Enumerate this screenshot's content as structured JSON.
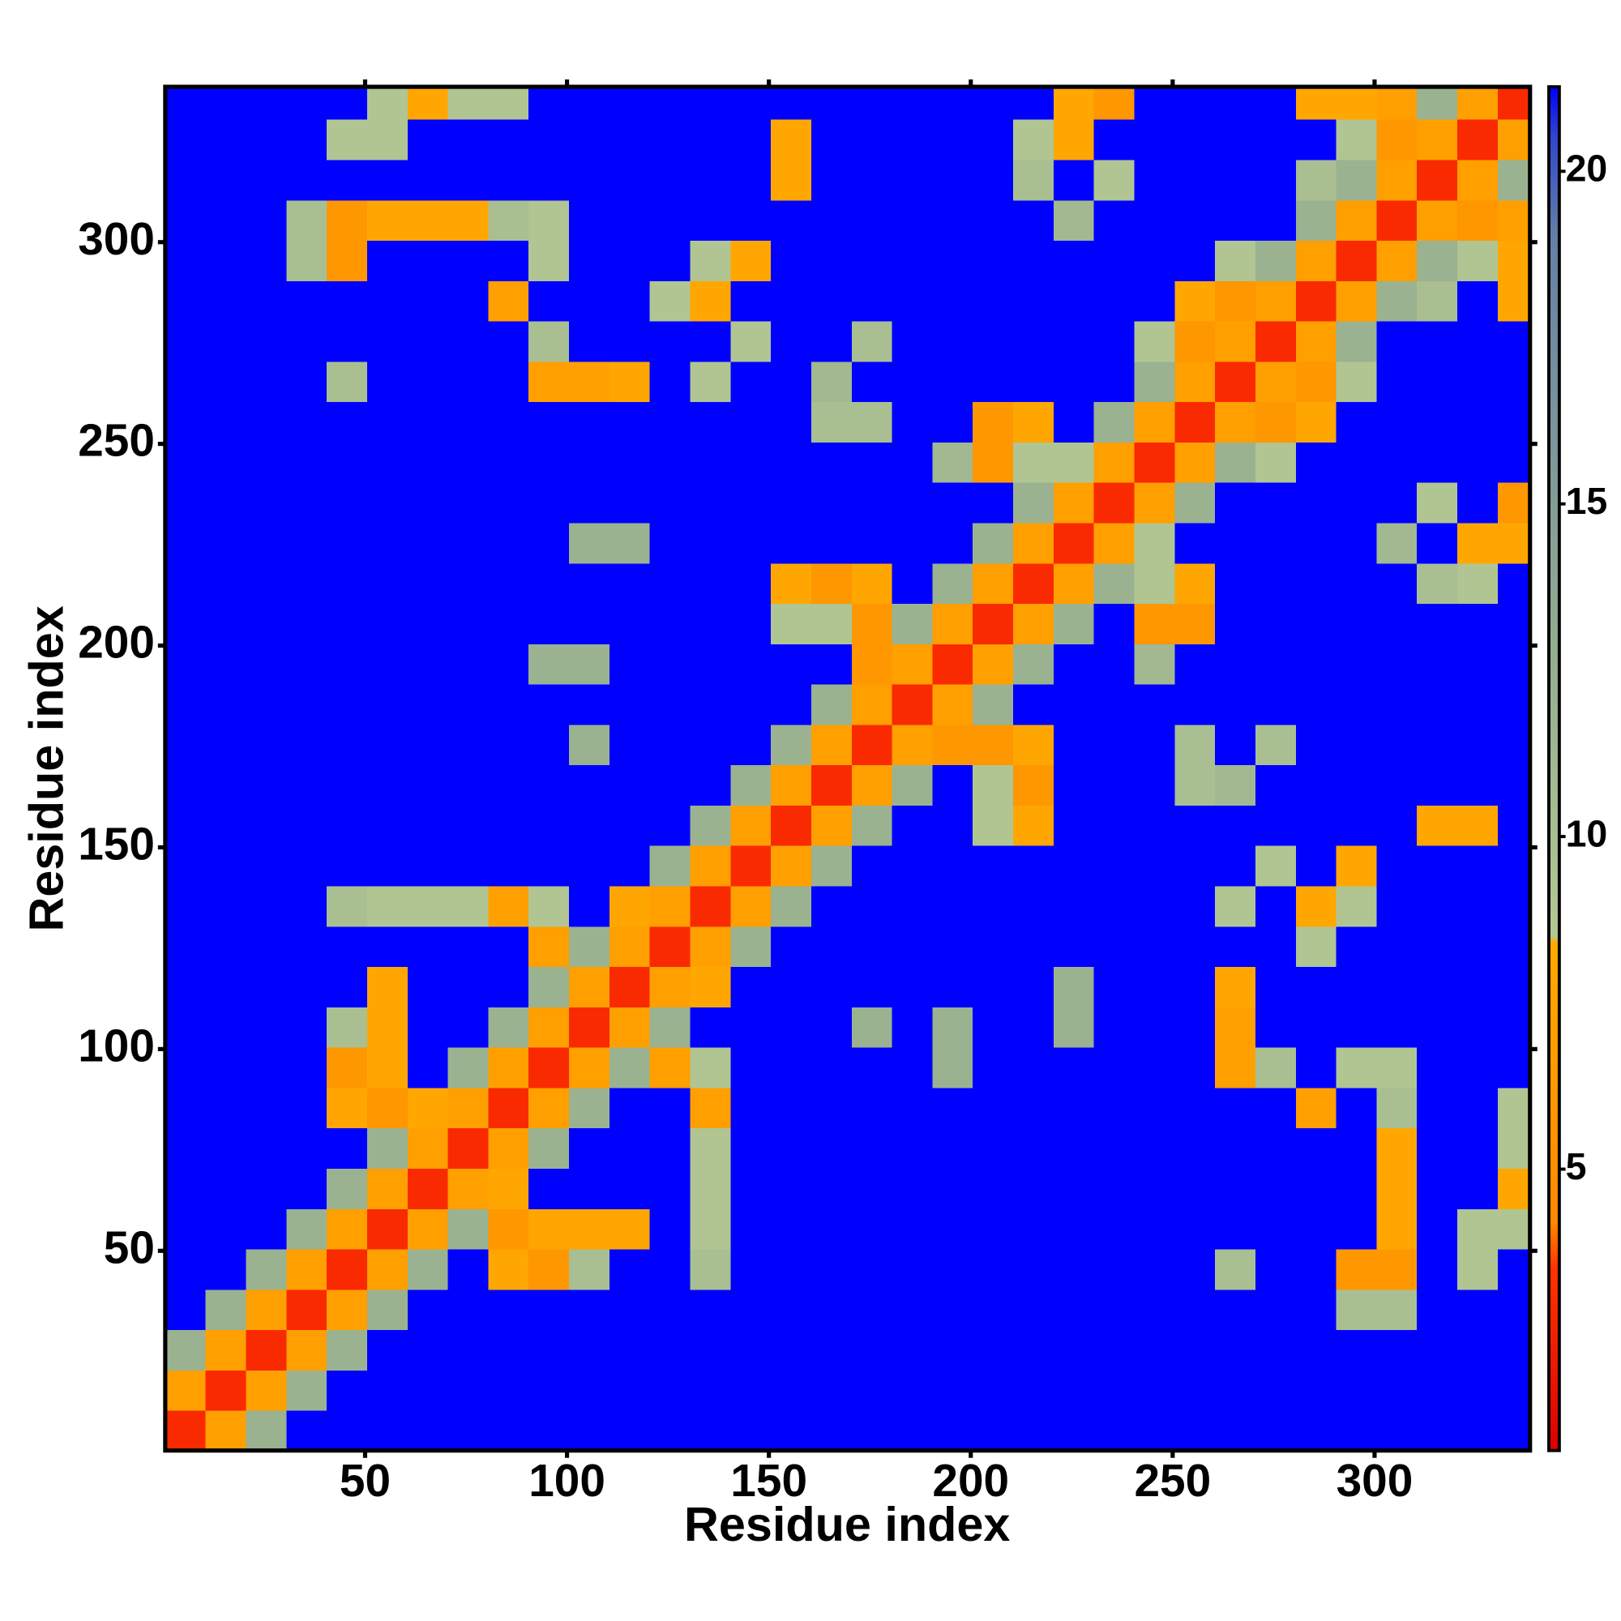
{
  "chart_data": {
    "type": "heatmap",
    "xlabel": "Residue index",
    "ylabel": "Residue index",
    "xbins": [
      0.5,
      10.5,
      20.5,
      30.5,
      40.5,
      50.5,
      60.5,
      70.5,
      80.5,
      90.5,
      100.5,
      110.5,
      120.5,
      130.5,
      140.5,
      150.5,
      160.5,
      170.5,
      180.5,
      190.5,
      200.5,
      210.5,
      220.5,
      230.5,
      240.5,
      250.5,
      260.5,
      270.5,
      280.5,
      290.5,
      300.5,
      310.5,
      320.5,
      330.5,
      338.5
    ],
    "ybins": [
      0.5,
      10.5,
      20.5,
      30.5,
      40.5,
      50.5,
      60.5,
      70.5,
      80.5,
      90.5,
      100.5,
      110.5,
      120.5,
      130.5,
      140.5,
      150.5,
      160.5,
      170.5,
      180.5,
      190.5,
      200.5,
      210.5,
      220.5,
      230.5,
      240.5,
      250.5,
      260.5,
      270.5,
      280.5,
      290.5,
      300.5,
      310.5,
      320.5,
      330.5,
      338.5
    ],
    "z": [
      [
        3,
        7,
        12,
        25,
        25,
        25,
        25,
        25,
        25,
        25,
        25,
        25,
        25,
        25,
        25,
        25,
        25,
        25,
        25,
        25,
        25,
        25,
        25,
        25,
        25,
        25,
        25,
        25,
        25,
        25,
        25,
        25,
        25,
        25
      ],
      [
        7,
        3,
        7,
        12,
        25,
        25,
        25,
        25,
        25,
        25,
        25,
        25,
        25,
        25,
        25,
        25,
        25,
        25,
        25,
        25,
        25,
        25,
        25,
        25,
        25,
        25,
        25,
        25,
        25,
        25,
        25,
        25,
        25,
        25
      ],
      [
        12,
        7,
        3,
        7,
        12,
        25,
        25,
        25,
        25,
        25,
        25,
        25,
        25,
        25,
        25,
        25,
        25,
        25,
        25,
        25,
        25,
        25,
        25,
        25,
        25,
        25,
        25,
        25,
        25,
        25,
        25,
        25,
        25,
        25
      ],
      [
        25,
        12,
        7,
        3,
        7,
        12,
        25,
        25,
        25,
        25,
        25,
        25,
        25,
        25,
        25,
        25,
        25,
        25,
        25,
        25,
        25,
        25,
        25,
        25,
        25,
        25,
        25,
        25,
        25,
        10,
        10,
        25,
        25,
        25
      ],
      [
        25,
        25,
        12,
        7,
        3,
        7,
        12,
        25,
        8,
        6,
        10,
        25,
        25,
        10,
        25,
        25,
        25,
        25,
        25,
        25,
        25,
        25,
        25,
        25,
        25,
        25,
        10,
        25,
        25,
        6,
        6,
        25,
        9,
        25
      ],
      [
        25,
        25,
        25,
        12,
        7,
        3,
        7,
        12,
        6,
        8,
        8,
        8,
        25,
        9,
        25,
        25,
        25,
        25,
        25,
        25,
        25,
        25,
        25,
        25,
        25,
        25,
        25,
        25,
        25,
        25,
        8,
        25,
        9,
        9
      ],
      [
        25,
        25,
        25,
        25,
        12,
        7,
        3,
        7,
        8,
        25,
        25,
        25,
        25,
        9,
        25,
        25,
        25,
        25,
        25,
        25,
        25,
        25,
        25,
        25,
        25,
        25,
        25,
        25,
        25,
        25,
        8,
        25,
        25,
        8
      ],
      [
        25,
        25,
        25,
        25,
        25,
        12,
        7,
        3,
        7,
        12,
        25,
        25,
        25,
        9,
        25,
        25,
        25,
        25,
        25,
        25,
        25,
        25,
        25,
        25,
        25,
        25,
        25,
        25,
        25,
        25,
        8,
        25,
        25,
        9
      ],
      [
        25,
        25,
        25,
        25,
        8,
        6,
        8,
        7,
        3,
        7,
        12,
        25,
        25,
        7,
        25,
        25,
        25,
        25,
        25,
        25,
        25,
        25,
        25,
        25,
        25,
        25,
        25,
        25,
        7,
        25,
        10,
        25,
        25,
        9
      ],
      [
        25,
        25,
        25,
        25,
        6,
        8,
        25,
        12,
        7,
        3,
        7,
        12,
        7,
        9,
        25,
        25,
        25,
        25,
        25,
        12,
        25,
        25,
        25,
        25,
        25,
        25,
        7,
        10,
        25,
        9,
        9,
        25,
        25,
        25
      ],
      [
        25,
        25,
        25,
        25,
        10,
        8,
        25,
        25,
        12,
        7,
        3,
        7,
        12,
        25,
        25,
        25,
        25,
        12,
        25,
        12,
        25,
        25,
        12,
        25,
        25,
        25,
        7,
        25,
        25,
        25,
        25,
        25,
        25,
        25
      ],
      [
        25,
        25,
        25,
        25,
        25,
        8,
        25,
        25,
        25,
        12,
        7,
        3,
        7,
        8,
        25,
        25,
        25,
        25,
        25,
        25,
        25,
        25,
        12,
        25,
        25,
        25,
        8,
        25,
        25,
        25,
        25,
        25,
        25,
        25
      ],
      [
        25,
        25,
        25,
        25,
        25,
        25,
        25,
        25,
        25,
        7,
        12,
        7,
        3,
        7,
        12,
        25,
        25,
        25,
        25,
        25,
        25,
        25,
        25,
        25,
        25,
        25,
        25,
        25,
        9,
        25,
        25,
        25,
        25,
        25
      ],
      [
        25,
        25,
        25,
        25,
        10,
        9,
        9,
        9,
        7,
        9,
        25,
        8,
        7,
        3,
        7,
        12,
        25,
        25,
        25,
        25,
        25,
        25,
        25,
        25,
        25,
        25,
        9,
        25,
        8,
        9,
        25,
        25,
        25,
        25
      ],
      [
        25,
        25,
        25,
        25,
        25,
        25,
        25,
        25,
        25,
        25,
        25,
        25,
        12,
        7,
        3,
        7,
        12,
        25,
        25,
        25,
        25,
        25,
        25,
        25,
        25,
        25,
        25,
        9,
        25,
        8,
        25,
        25,
        25,
        25
      ],
      [
        25,
        25,
        25,
        25,
        25,
        25,
        25,
        25,
        25,
        25,
        25,
        25,
        25,
        12,
        7,
        3,
        7,
        12,
        25,
        25,
        9,
        8,
        25,
        25,
        25,
        25,
        25,
        25,
        25,
        25,
        25,
        8,
        8,
        25
      ],
      [
        25,
        25,
        25,
        25,
        25,
        25,
        25,
        25,
        25,
        25,
        25,
        25,
        25,
        25,
        12,
        7,
        3,
        7,
        12,
        25,
        9,
        6,
        25,
        25,
        25,
        10,
        11,
        25,
        25,
        25,
        25,
        25,
        25,
        25
      ],
      [
        25,
        25,
        25,
        25,
        25,
        25,
        25,
        25,
        25,
        25,
        12,
        25,
        25,
        25,
        25,
        12,
        7,
        3,
        7,
        6,
        6,
        8,
        25,
        25,
        25,
        10,
        25,
        10,
        25,
        25,
        25,
        25,
        25,
        25
      ],
      [
        25,
        25,
        25,
        25,
        25,
        25,
        25,
        25,
        25,
        25,
        25,
        25,
        25,
        25,
        25,
        25,
        12,
        7,
        3,
        7,
        12,
        25,
        25,
        25,
        25,
        25,
        25,
        25,
        25,
        25,
        25,
        25,
        25,
        25
      ],
      [
        25,
        25,
        25,
        25,
        25,
        25,
        25,
        25,
        25,
        12,
        12,
        25,
        25,
        25,
        25,
        25,
        25,
        6,
        7,
        3,
        7,
        12,
        25,
        25,
        11,
        25,
        25,
        25,
        25,
        25,
        25,
        25,
        25,
        25
      ],
      [
        25,
        25,
        25,
        25,
        25,
        25,
        25,
        25,
        25,
        25,
        25,
        25,
        25,
        25,
        25,
        9,
        9,
        6,
        12,
        7,
        3,
        7,
        12,
        25,
        6,
        6,
        25,
        25,
        25,
        25,
        25,
        25,
        25,
        25
      ],
      [
        25,
        25,
        25,
        25,
        25,
        25,
        25,
        25,
        25,
        25,
        25,
        25,
        25,
        25,
        25,
        8,
        6,
        8,
        25,
        12,
        7,
        3,
        7,
        12,
        9,
        8,
        25,
        25,
        25,
        25,
        25,
        10,
        9,
        25
      ],
      [
        25,
        25,
        25,
        25,
        25,
        25,
        25,
        25,
        25,
        25,
        12,
        12,
        25,
        25,
        25,
        25,
        25,
        25,
        25,
        25,
        12,
        7,
        3,
        7,
        9,
        25,
        25,
        25,
        25,
        25,
        11,
        25,
        8,
        8
      ],
      [
        25,
        25,
        25,
        25,
        25,
        25,
        25,
        25,
        25,
        25,
        25,
        25,
        25,
        25,
        25,
        25,
        25,
        25,
        25,
        25,
        25,
        12,
        7,
        3,
        7,
        12,
        25,
        25,
        25,
        25,
        25,
        9,
        25,
        6
      ],
      [
        25,
        25,
        25,
        25,
        25,
        25,
        25,
        25,
        25,
        25,
        25,
        25,
        25,
        25,
        25,
        25,
        25,
        25,
        25,
        11,
        6,
        9,
        9,
        7,
        3,
        7,
        12,
        9,
        25,
        25,
        25,
        25,
        25,
        25
      ],
      [
        25,
        25,
        25,
        25,
        25,
        25,
        25,
        25,
        25,
        25,
        25,
        25,
        25,
        25,
        25,
        25,
        10,
        10,
        25,
        25,
        6,
        8,
        25,
        12,
        7,
        3,
        7,
        6,
        8,
        25,
        25,
        25,
        25,
        25
      ],
      [
        25,
        25,
        25,
        25,
        10,
        25,
        25,
        25,
        25,
        7,
        7,
        8,
        25,
        9,
        25,
        25,
        11,
        25,
        25,
        25,
        25,
        25,
        25,
        25,
        12,
        7,
        3,
        7,
        6,
        9,
        25,
        25,
        25,
        25
      ],
      [
        25,
        25,
        25,
        25,
        25,
        25,
        25,
        25,
        25,
        10,
        25,
        25,
        25,
        25,
        9,
        25,
        25,
        10,
        25,
        25,
        25,
        25,
        25,
        25,
        9,
        6,
        7,
        3,
        7,
        12,
        25,
        25,
        25,
        25
      ],
      [
        25,
        25,
        25,
        25,
        25,
        25,
        25,
        25,
        7,
        25,
        25,
        25,
        9,
        8,
        25,
        25,
        25,
        25,
        25,
        25,
        25,
        25,
        25,
        25,
        25,
        8,
        6,
        7,
        3,
        7,
        12,
        10,
        25,
        8
      ],
      [
        25,
        25,
        25,
        10,
        6,
        25,
        25,
        25,
        25,
        9,
        25,
        25,
        25,
        9,
        8,
        25,
        25,
        25,
        25,
        25,
        25,
        25,
        25,
        25,
        25,
        25,
        9,
        12,
        7,
        3,
        7,
        12,
        9,
        8
      ],
      [
        25,
        25,
        25,
        10,
        6,
        8,
        8,
        8,
        10,
        9,
        25,
        25,
        25,
        25,
        25,
        25,
        25,
        25,
        25,
        25,
        25,
        25,
        11,
        25,
        25,
        25,
        25,
        25,
        12,
        7,
        3,
        7,
        6,
        7
      ],
      [
        25,
        25,
        25,
        25,
        25,
        25,
        25,
        25,
        25,
        25,
        25,
        25,
        25,
        25,
        25,
        8,
        25,
        25,
        25,
        25,
        25,
        10,
        25,
        9,
        25,
        25,
        25,
        25,
        10,
        12,
        7,
        3,
        7,
        12
      ],
      [
        25,
        25,
        25,
        25,
        9,
        9,
        25,
        25,
        25,
        25,
        25,
        25,
        25,
        25,
        25,
        8,
        25,
        25,
        25,
        25,
        25,
        9,
        8,
        25,
        25,
        25,
        25,
        25,
        25,
        9,
        6,
        7,
        3,
        7
      ],
      [
        25,
        25,
        25,
        25,
        25,
        9,
        8,
        9,
        9,
        25,
        25,
        25,
        25,
        25,
        25,
        25,
        25,
        25,
        25,
        25,
        25,
        25,
        8,
        6,
        25,
        25,
        25,
        25,
        8,
        8,
        7,
        12,
        7,
        3
      ]
    ],
    "xlim": [
      0.5,
      338.5
    ],
    "ylim": [
      0.5,
      338.5
    ],
    "xticks": [
      50,
      100,
      150,
      200,
      250,
      300
    ],
    "yticks": [
      50,
      100,
      150,
      200,
      250,
      300
    ],
    "zlim": [
      0.77,
      21.27
    ],
    "zticks": [
      5,
      10,
      15,
      20
    ],
    "colorscale": [
      [
        0.77,
        "#dd0000"
      ],
      [
        3.5,
        "#ff3300"
      ],
      [
        4.2,
        "#ff8800"
      ],
      [
        8.4,
        "#ffaa00"
      ],
      [
        8.5,
        "#b4c892"
      ],
      [
        13,
        "#92ac90"
      ],
      [
        19,
        "#6480a6"
      ],
      [
        20.5,
        "#3048cc"
      ],
      [
        21.27,
        "#0000ff"
      ]
    ]
  }
}
